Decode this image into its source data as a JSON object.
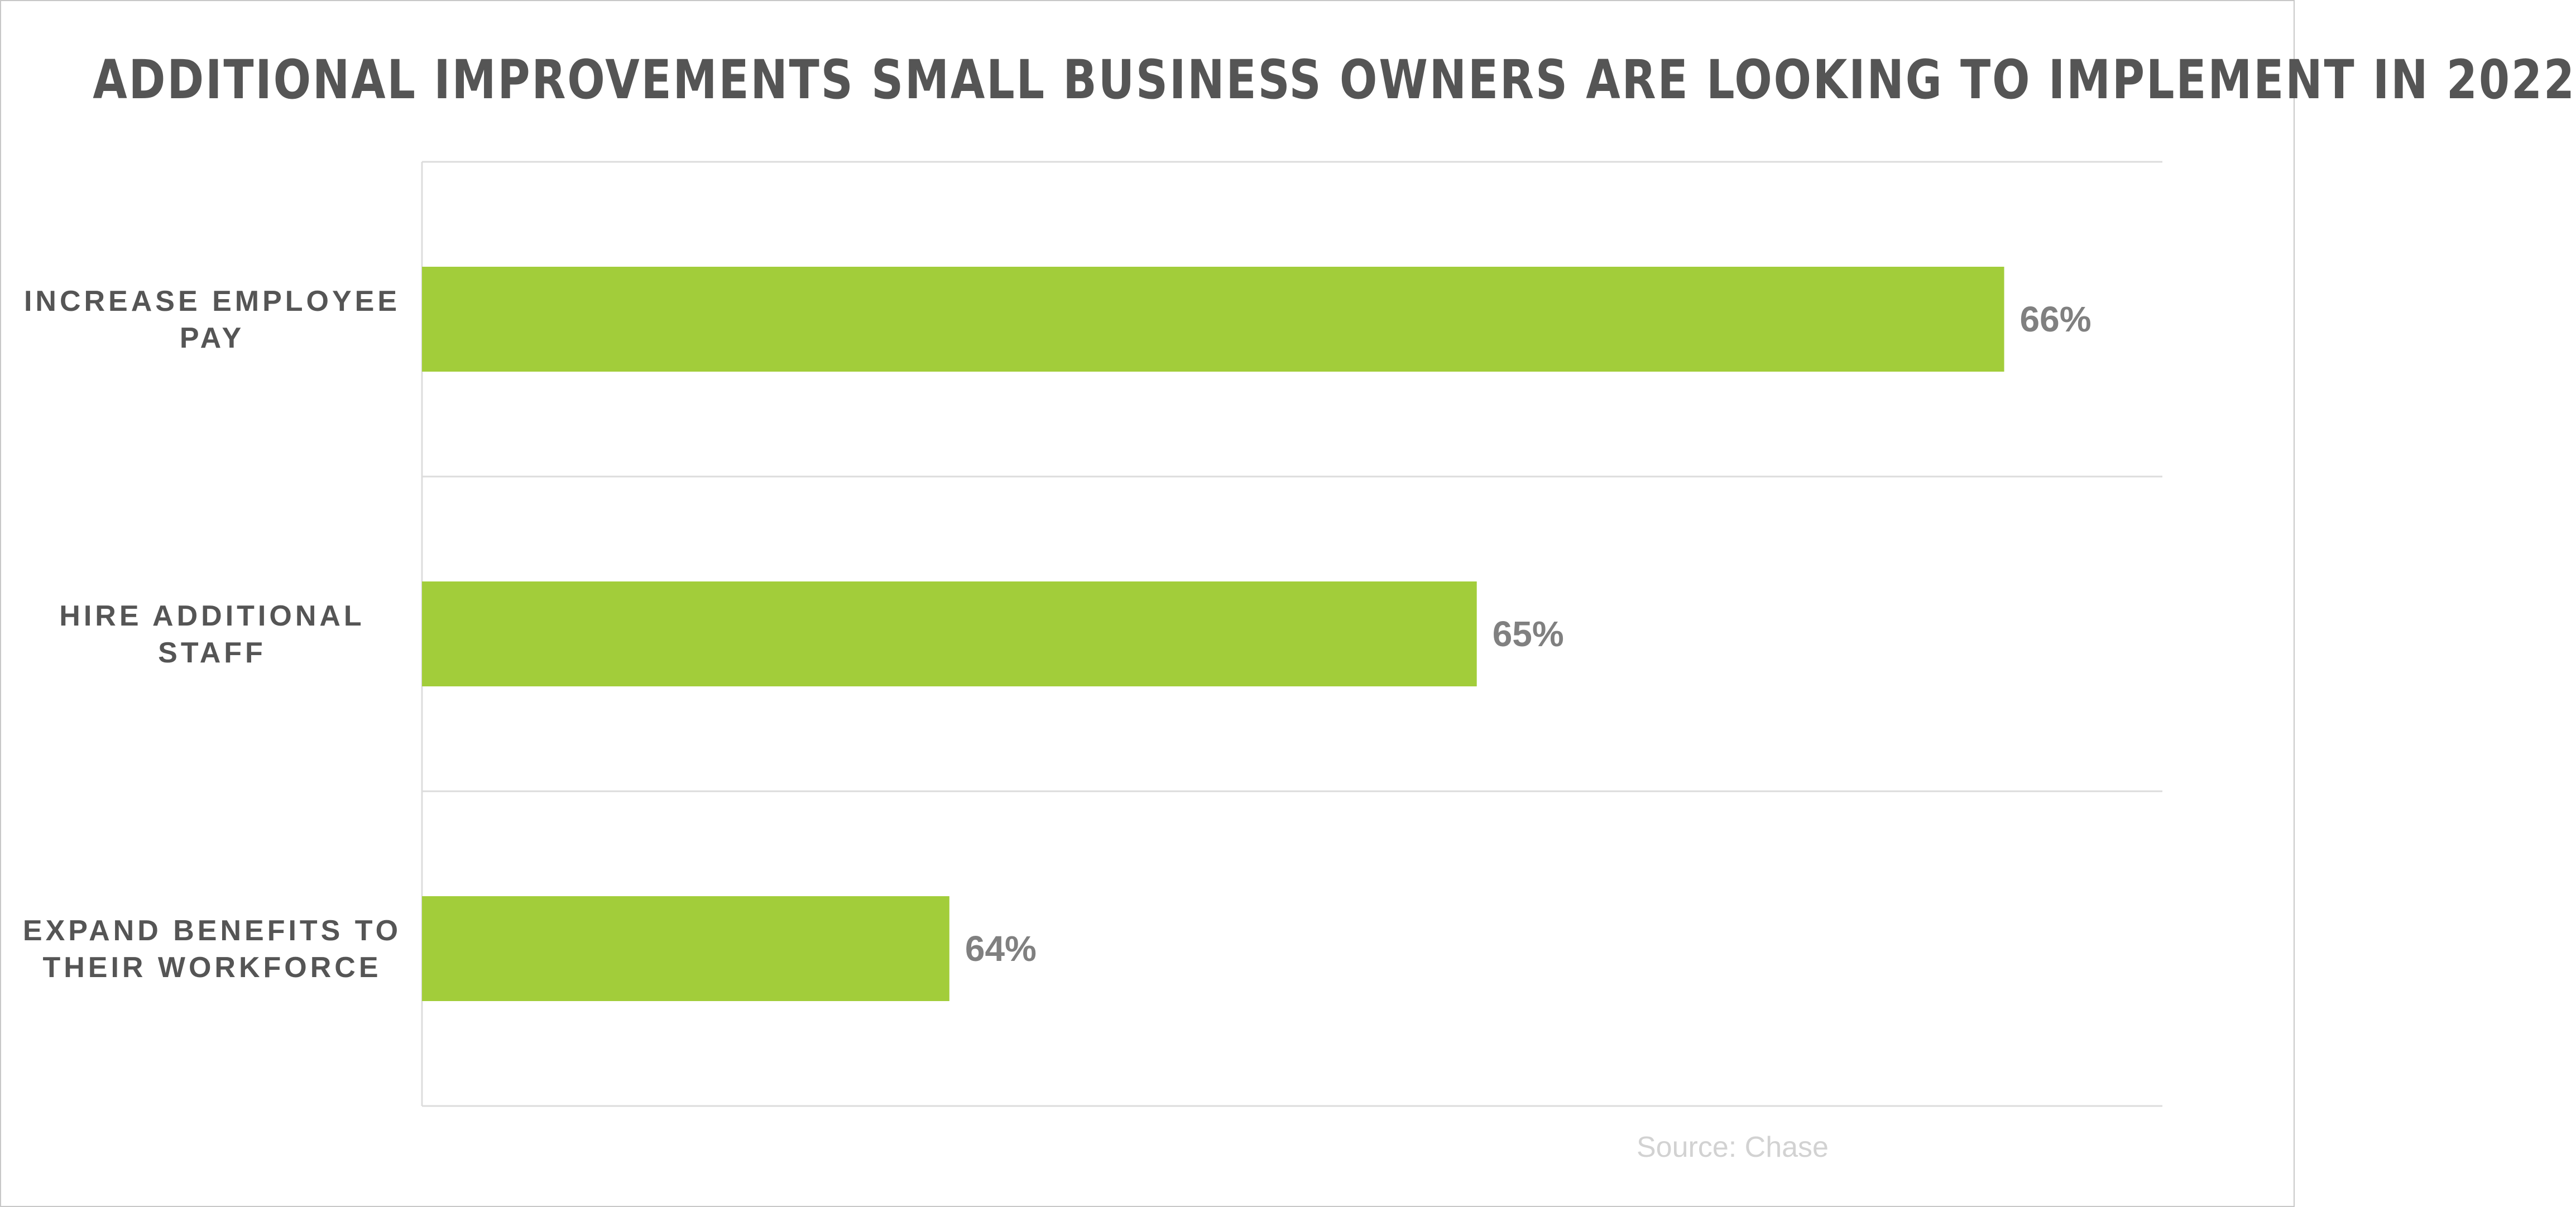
{
  "chart_data": {
    "type": "bar",
    "orientation": "horizontal",
    "title": "ADDITIONAL IMPROVEMENTS SMALL BUSINESS OWNERS ARE LOOKING TO IMPLEMENT IN 2022",
    "categories": [
      [
        "INCREASE EMPLOYEE",
        "PAY"
      ],
      [
        "HIRE ADDITIONAL",
        "STAFF"
      ],
      [
        "EXPAND BENEFITS TO",
        "THEIR WORKFORCE"
      ]
    ],
    "values": [
      66,
      65,
      64
    ],
    "value_labels": [
      "66%",
      "65%",
      "64%"
    ],
    "xlim": [
      63,
      66.3
    ],
    "bar_color": "#a2cd3a",
    "grid": true,
    "source": "Source: Chase"
  }
}
